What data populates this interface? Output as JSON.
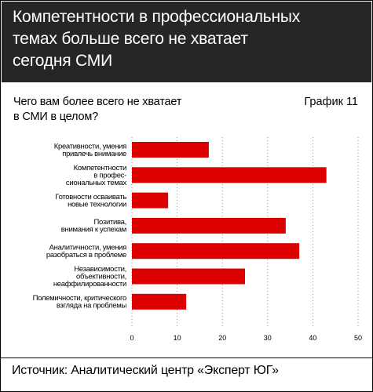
{
  "header": {
    "title_lines": [
      "Компетентности в профессиональных",
      "темах больше всего не хватает",
      "сегодня СМИ"
    ]
  },
  "question_lines": [
    "Чего вам более всего не хватает",
    "в СМИ в целом?"
  ],
  "chart_number": "График 11",
  "source": "Источник: Аналитический центр «Эксперт ЮГ»",
  "colors": {
    "bar": "#dd0000",
    "header_bg": "#262626"
  },
  "chart_data": {
    "type": "bar",
    "orientation": "horizontal",
    "categories": [
      [
        "Креативности, умения",
        "привлечь внимание"
      ],
      [
        "Компетентности",
        "в профес-",
        "сиональных темах"
      ],
      [
        "Готовности осваивать",
        "новые технологии"
      ],
      [
        "Позитива,",
        "внимания к успехам"
      ],
      [
        "Аналитичности, умения",
        "разобраться в проблеме"
      ],
      [
        "Независимости,",
        "объективности,",
        "неаффилированности"
      ],
      [
        "Полемичности, критического",
        "взгляда на проблемы"
      ]
    ],
    "values": [
      17,
      43,
      8,
      34,
      37,
      25,
      12
    ],
    "xlim": [
      0,
      50
    ],
    "xticks": [
      "0",
      "10",
      "20",
      "30",
      "40",
      "50"
    ],
    "grid": true
  }
}
